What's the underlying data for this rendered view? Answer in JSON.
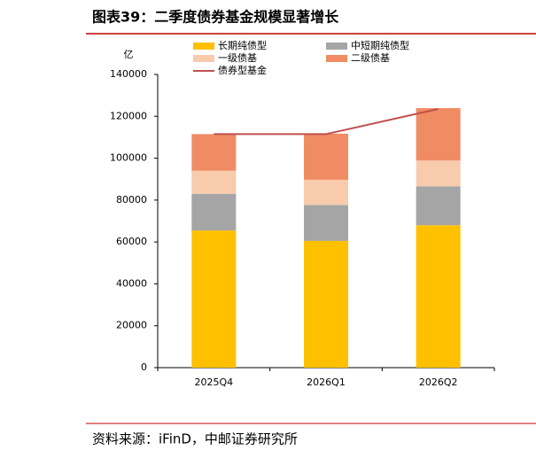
{
  "title": "图表39：二季度债券基金规模显著增长",
  "source": "资料来源：iFinD，中邮证券研究所",
  "chart_data": {
    "type": "bar",
    "stacked": true,
    "y_label": "亿",
    "categories": [
      "2025Q4",
      "2026Q1",
      "2026Q2"
    ],
    "series": [
      {
        "name": "长期纯债型",
        "color": "#FFC000",
        "values": [
          65500,
          60500,
          68000
        ]
      },
      {
        "name": "中短期纯债型",
        "color": "#A5A5A5",
        "values": [
          17500,
          17200,
          18600
        ]
      },
      {
        "name": "一级债基",
        "color": "#F8CBAD",
        "values": [
          11000,
          12000,
          12300
        ]
      },
      {
        "name": "二级债基",
        "color": "#F08C64",
        "values": [
          17500,
          22000,
          25000
        ]
      },
      {
        "name": "债券型基金",
        "color": "#C0504D",
        "type": "line",
        "values": [
          111500,
          111500,
          123500
        ]
      }
    ],
    "ylim": [
      0,
      140000
    ],
    "yticks": [
      0,
      20000,
      40000,
      60000,
      80000,
      100000,
      120000,
      140000
    ],
    "grid": false
  }
}
